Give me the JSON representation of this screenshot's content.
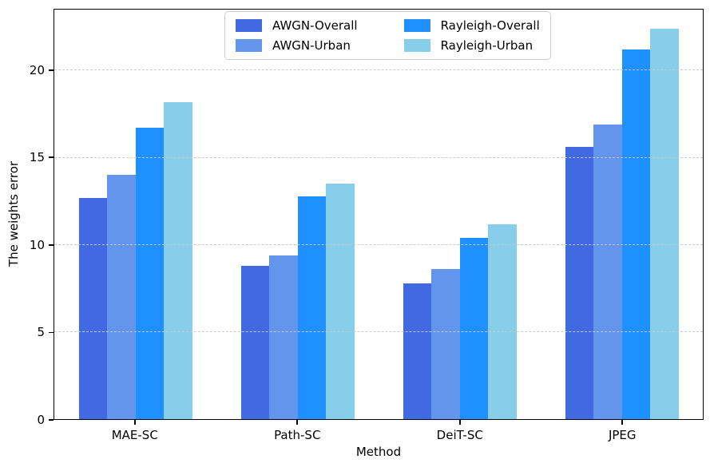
{
  "chart_data": {
    "type": "bar",
    "title": "",
    "xlabel": "Method",
    "ylabel": "The weights error",
    "categories": [
      "MAE-SC",
      "Path-SC",
      "DeiT-SC",
      "JPEG"
    ],
    "series": [
      {
        "name": "AWGN-Overall",
        "color": "#4169E1",
        "values": [
          12.7,
          8.8,
          7.8,
          15.6
        ]
      },
      {
        "name": "AWGN-Urban",
        "color": "#6495ED",
        "values": [
          14.0,
          9.4,
          8.6,
          16.9
        ]
      },
      {
        "name": "Rayleigh-Overall",
        "color": "#1E90FF",
        "values": [
          16.7,
          12.8,
          10.4,
          21.2
        ]
      },
      {
        "name": "Rayleigh-Urban",
        "color": "#87CEEB",
        "values": [
          18.2,
          13.5,
          11.2,
          22.4
        ]
      }
    ],
    "yticks": [
      0,
      5,
      10,
      15,
      20
    ],
    "ylim": [
      0,
      23.5
    ],
    "grid": "horizontal-dashed",
    "grid_color": "#c8c8c8",
    "legend_position": "upper-center",
    "legend_columns": 2,
    "spine_color": "#000000"
  }
}
